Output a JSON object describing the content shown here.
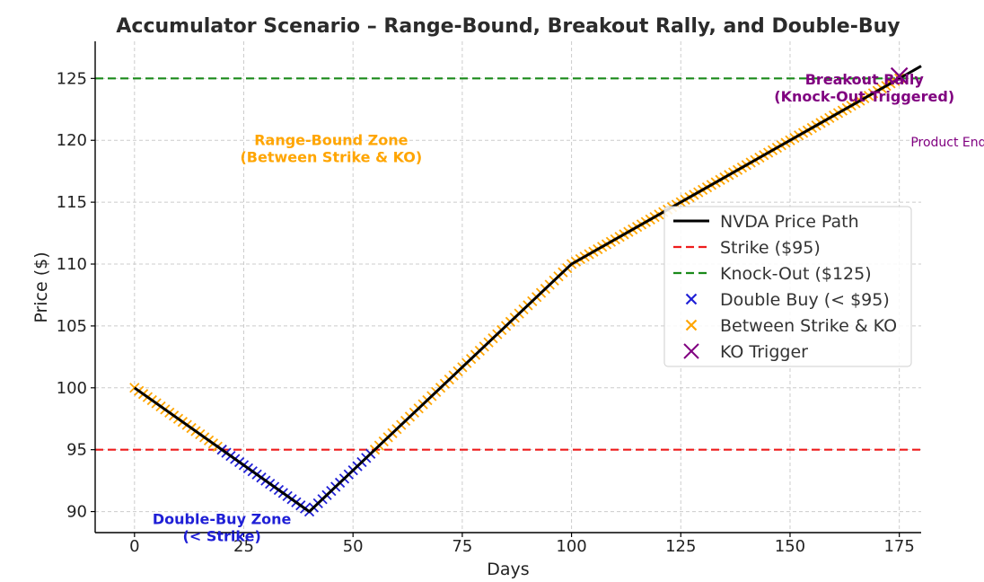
{
  "chart_data": {
    "type": "line",
    "title": "Accumulator Scenario – Range-Bound, Breakout Rally, and Double-Buy",
    "xlabel": "Days",
    "ylabel": "Price ($)",
    "xlim": [
      -9,
      180
    ],
    "ylim": [
      88.3,
      128
    ],
    "xticks": [
      0,
      25,
      50,
      75,
      100,
      125,
      150,
      175
    ],
    "yticks": [
      90,
      95,
      100,
      105,
      110,
      115,
      120,
      125
    ],
    "grid": true,
    "legend_position": "center-right",
    "colors": {
      "price": "#000000",
      "strike": "#ee1c1c",
      "knockout": "#1a8a1a",
      "double_buy": "#1f1fd6",
      "between": "#ffa500",
      "ko": "#800080"
    },
    "series": [
      {
        "name": "NVDA Price Path",
        "kind": "line",
        "points": [
          [
            0,
            100
          ],
          [
            40,
            90
          ],
          [
            100,
            110
          ],
          [
            180,
            126
          ]
        ]
      },
      {
        "name": "Strike ($95)",
        "kind": "hline",
        "y": 95
      },
      {
        "name": "Knock-Out ($125)",
        "kind": "hline",
        "y": 125
      },
      {
        "name": "Double Buy (< $95)",
        "kind": "markers",
        "x_start": 20,
        "x_end": 54
      },
      {
        "name": "Between Strike & KO",
        "kind": "markers",
        "segments": [
          [
            0,
            20
          ],
          [
            54,
            175
          ]
        ]
      },
      {
        "name": "KO Trigger",
        "kind": "marker",
        "x": 175,
        "y": 125.2
      }
    ],
    "annotations": [
      {
        "lines": [
          "Range-Bound Zone",
          "(Between Strike & KO)"
        ],
        "x": 45,
        "y": 119.6,
        "color": "#ffa500",
        "bold": true
      },
      {
        "lines": [
          "Double-Buy Zone",
          "(< Strike)"
        ],
        "x": 20,
        "y": 89.0,
        "color": "#1f1fd6",
        "bold": true
      },
      {
        "lines": [
          "Breakout Rally",
          "(Knock-Out Triggered)"
        ],
        "x": 167,
        "y": 124.5,
        "color": "#800080",
        "bold": true
      },
      {
        "lines": [
          "Product Ends"
        ],
        "x": 187,
        "y": 119.5,
        "color": "#800080",
        "bold": false
      }
    ]
  }
}
